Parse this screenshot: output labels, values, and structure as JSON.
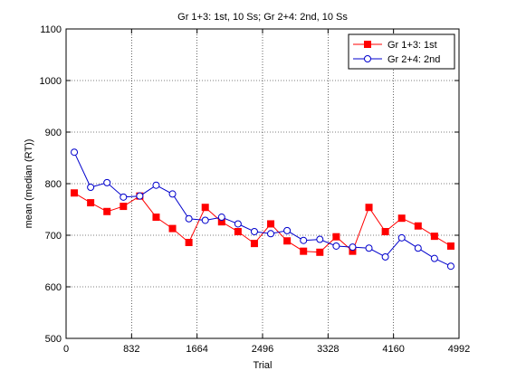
{
  "chart_data": {
    "type": "line",
    "title": "Gr 1+3: 1st, 10 Ss; Gr 2+4: 2nd, 10 Ss",
    "xlabel": "Trial",
    "ylabel": "mean (median (RT))",
    "xlim": [
      0,
      4992
    ],
    "ylim": [
      500,
      1100
    ],
    "x_ticks": [
      "0",
      "832",
      "1664",
      "2496",
      "3328",
      "4160",
      "4992"
    ],
    "y_ticks": [
      "500",
      "600",
      "700",
      "800",
      "900",
      "1000",
      "1100"
    ],
    "grid": true,
    "legend_position": "top-right",
    "series": [
      {
        "name": "Gr 1+3: 1st",
        "color": "#ff0000",
        "marker": "square",
        "x": [
          104,
          312,
          520,
          728,
          936,
          1144,
          1352,
          1560,
          1768,
          1976,
          2184,
          2392,
          2600,
          2808,
          3016,
          3224,
          3432,
          3640,
          3848,
          4056,
          4264,
          4472,
          4680,
          4888
        ],
        "y": [
          782,
          763,
          746,
          756,
          776,
          735,
          713,
          686,
          754,
          726,
          707,
          684,
          722,
          689,
          669,
          667,
          697,
          669,
          754,
          707,
          733,
          718,
          698,
          679
        ]
      },
      {
        "name": "Gr 2+4: 2nd",
        "color": "#0000cc",
        "marker": "circle",
        "x": [
          104,
          312,
          520,
          728,
          936,
          1144,
          1352,
          1560,
          1768,
          1976,
          2184,
          2392,
          2600,
          2808,
          3016,
          3224,
          3432,
          3640,
          3848,
          4056,
          4264,
          4472,
          4680,
          4888
        ],
        "y": [
          861,
          793,
          802,
          774,
          776,
          797,
          780,
          732,
          729,
          735,
          722,
          707,
          703,
          709,
          690,
          692,
          679,
          677,
          675,
          658,
          695,
          675,
          655,
          640
        ]
      }
    ]
  }
}
